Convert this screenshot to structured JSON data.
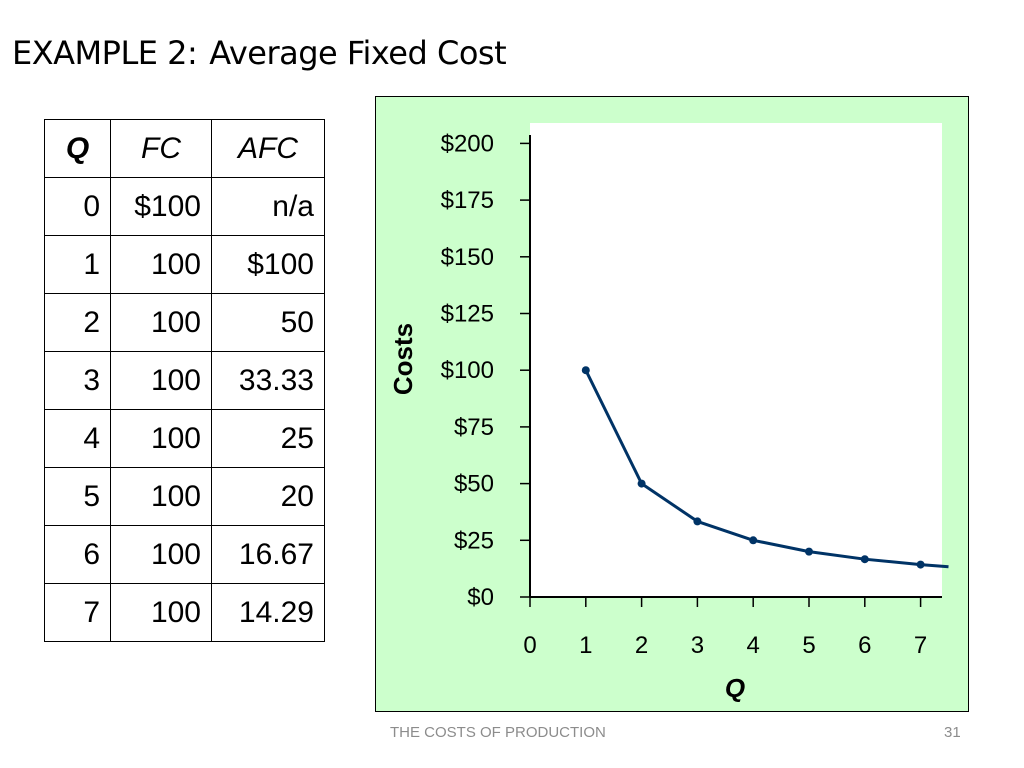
{
  "slide": {
    "title_part1": "EXAMPLE 2:",
    "title_part2": "Average Fixed Cost",
    "footer": "THE COSTS OF PRODUCTION",
    "page_number": "31"
  },
  "table": {
    "headers": [
      "Q",
      "FC",
      "AFC"
    ],
    "rows": [
      [
        "0",
        "$100",
        "n/a"
      ],
      [
        "1",
        "100",
        "$100"
      ],
      [
        "2",
        "100",
        "50"
      ],
      [
        "3",
        "100",
        "33.33"
      ],
      [
        "4",
        "100",
        "25"
      ],
      [
        "5",
        "100",
        "20"
      ],
      [
        "6",
        "100",
        "16.67"
      ],
      [
        "7",
        "100",
        "14.29"
      ]
    ]
  },
  "chart_data": {
    "type": "line",
    "title": "",
    "xlabel": "Q",
    "ylabel": "Costs",
    "xlim": [
      0,
      7.4
    ],
    "ylim": [
      0,
      210
    ],
    "x_ticks": [
      0,
      1,
      2,
      3,
      4,
      5,
      6,
      7
    ],
    "x_tick_labels": [
      "0",
      "1",
      "2",
      "3",
      "4",
      "5",
      "6",
      "7"
    ],
    "y_ticks": [
      0,
      25,
      50,
      75,
      100,
      125,
      150,
      175,
      200
    ],
    "y_tick_labels": [
      "$0",
      "$25",
      "$50",
      "$75",
      "$100",
      "$125",
      "$150",
      "$175",
      "$200"
    ],
    "grid": false,
    "series": [
      {
        "x": [
          1,
          2,
          3,
          4,
          5,
          6,
          7
        ],
        "y": [
          100,
          50,
          33.33,
          25,
          20,
          16.67,
          14.29
        ],
        "curve_extends_to": {
          "x": 7.5,
          "y": 13.33
        },
        "color": "#003366"
      }
    ],
    "panel_color": "#ccffcc",
    "plot_background": "#ffffff"
  }
}
